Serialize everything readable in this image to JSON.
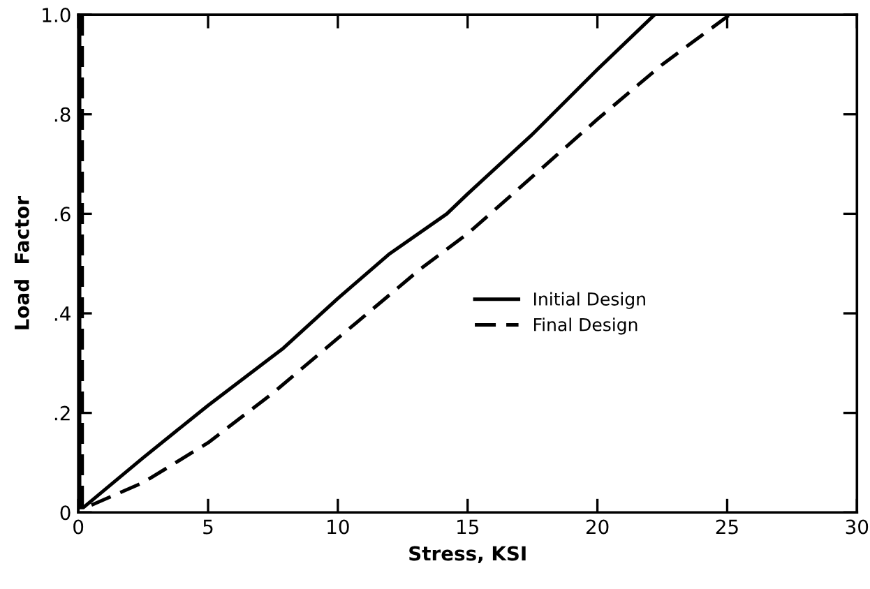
{
  "chart_data": {
    "type": "line",
    "xlabel": "Stress, KSI",
    "ylabel": "Load  Factor",
    "xlim": [
      0,
      30
    ],
    "ylim": [
      0,
      1.0
    ],
    "xticks": [
      0,
      5,
      10,
      15,
      20,
      25,
      30
    ],
    "yticks": [
      0,
      {
        "value": 0.2,
        "label": ".2"
      },
      {
        "value": 0.4,
        "label": ".4"
      },
      {
        "value": 0.6,
        "label": ".6"
      },
      {
        "value": 0.8,
        "label": ".8"
      },
      {
        "value": 1.0,
        "label": "1.0"
      }
    ],
    "grid": false,
    "legend": "right",
    "series": [
      {
        "name": "Initial Design",
        "color": "#000000",
        "line_style": "solid",
        "x": [
          0.05,
          0.05,
          0.2,
          2.5,
          5,
          7.9,
          10,
          12,
          14.2,
          15,
          17.5,
          20,
          22.2
        ],
        "values": [
          1.0,
          0.01,
          0.01,
          0.11,
          0.215,
          0.33,
          0.43,
          0.52,
          0.6,
          0.64,
          0.76,
          0.89,
          1.0
        ]
      },
      {
        "name": "Final Design",
        "color": "#000000",
        "line_style": "dashed",
        "x": [
          0.15,
          0.15,
          0.3,
          2.5,
          5,
          7.5,
          10,
          13.2,
          15,
          17.5,
          20,
          22.5,
          25.1
        ],
        "values": [
          1.0,
          0.01,
          0.01,
          0.06,
          0.14,
          0.24,
          0.35,
          0.49,
          0.56,
          0.675,
          0.79,
          0.9,
          1.0
        ]
      }
    ]
  }
}
